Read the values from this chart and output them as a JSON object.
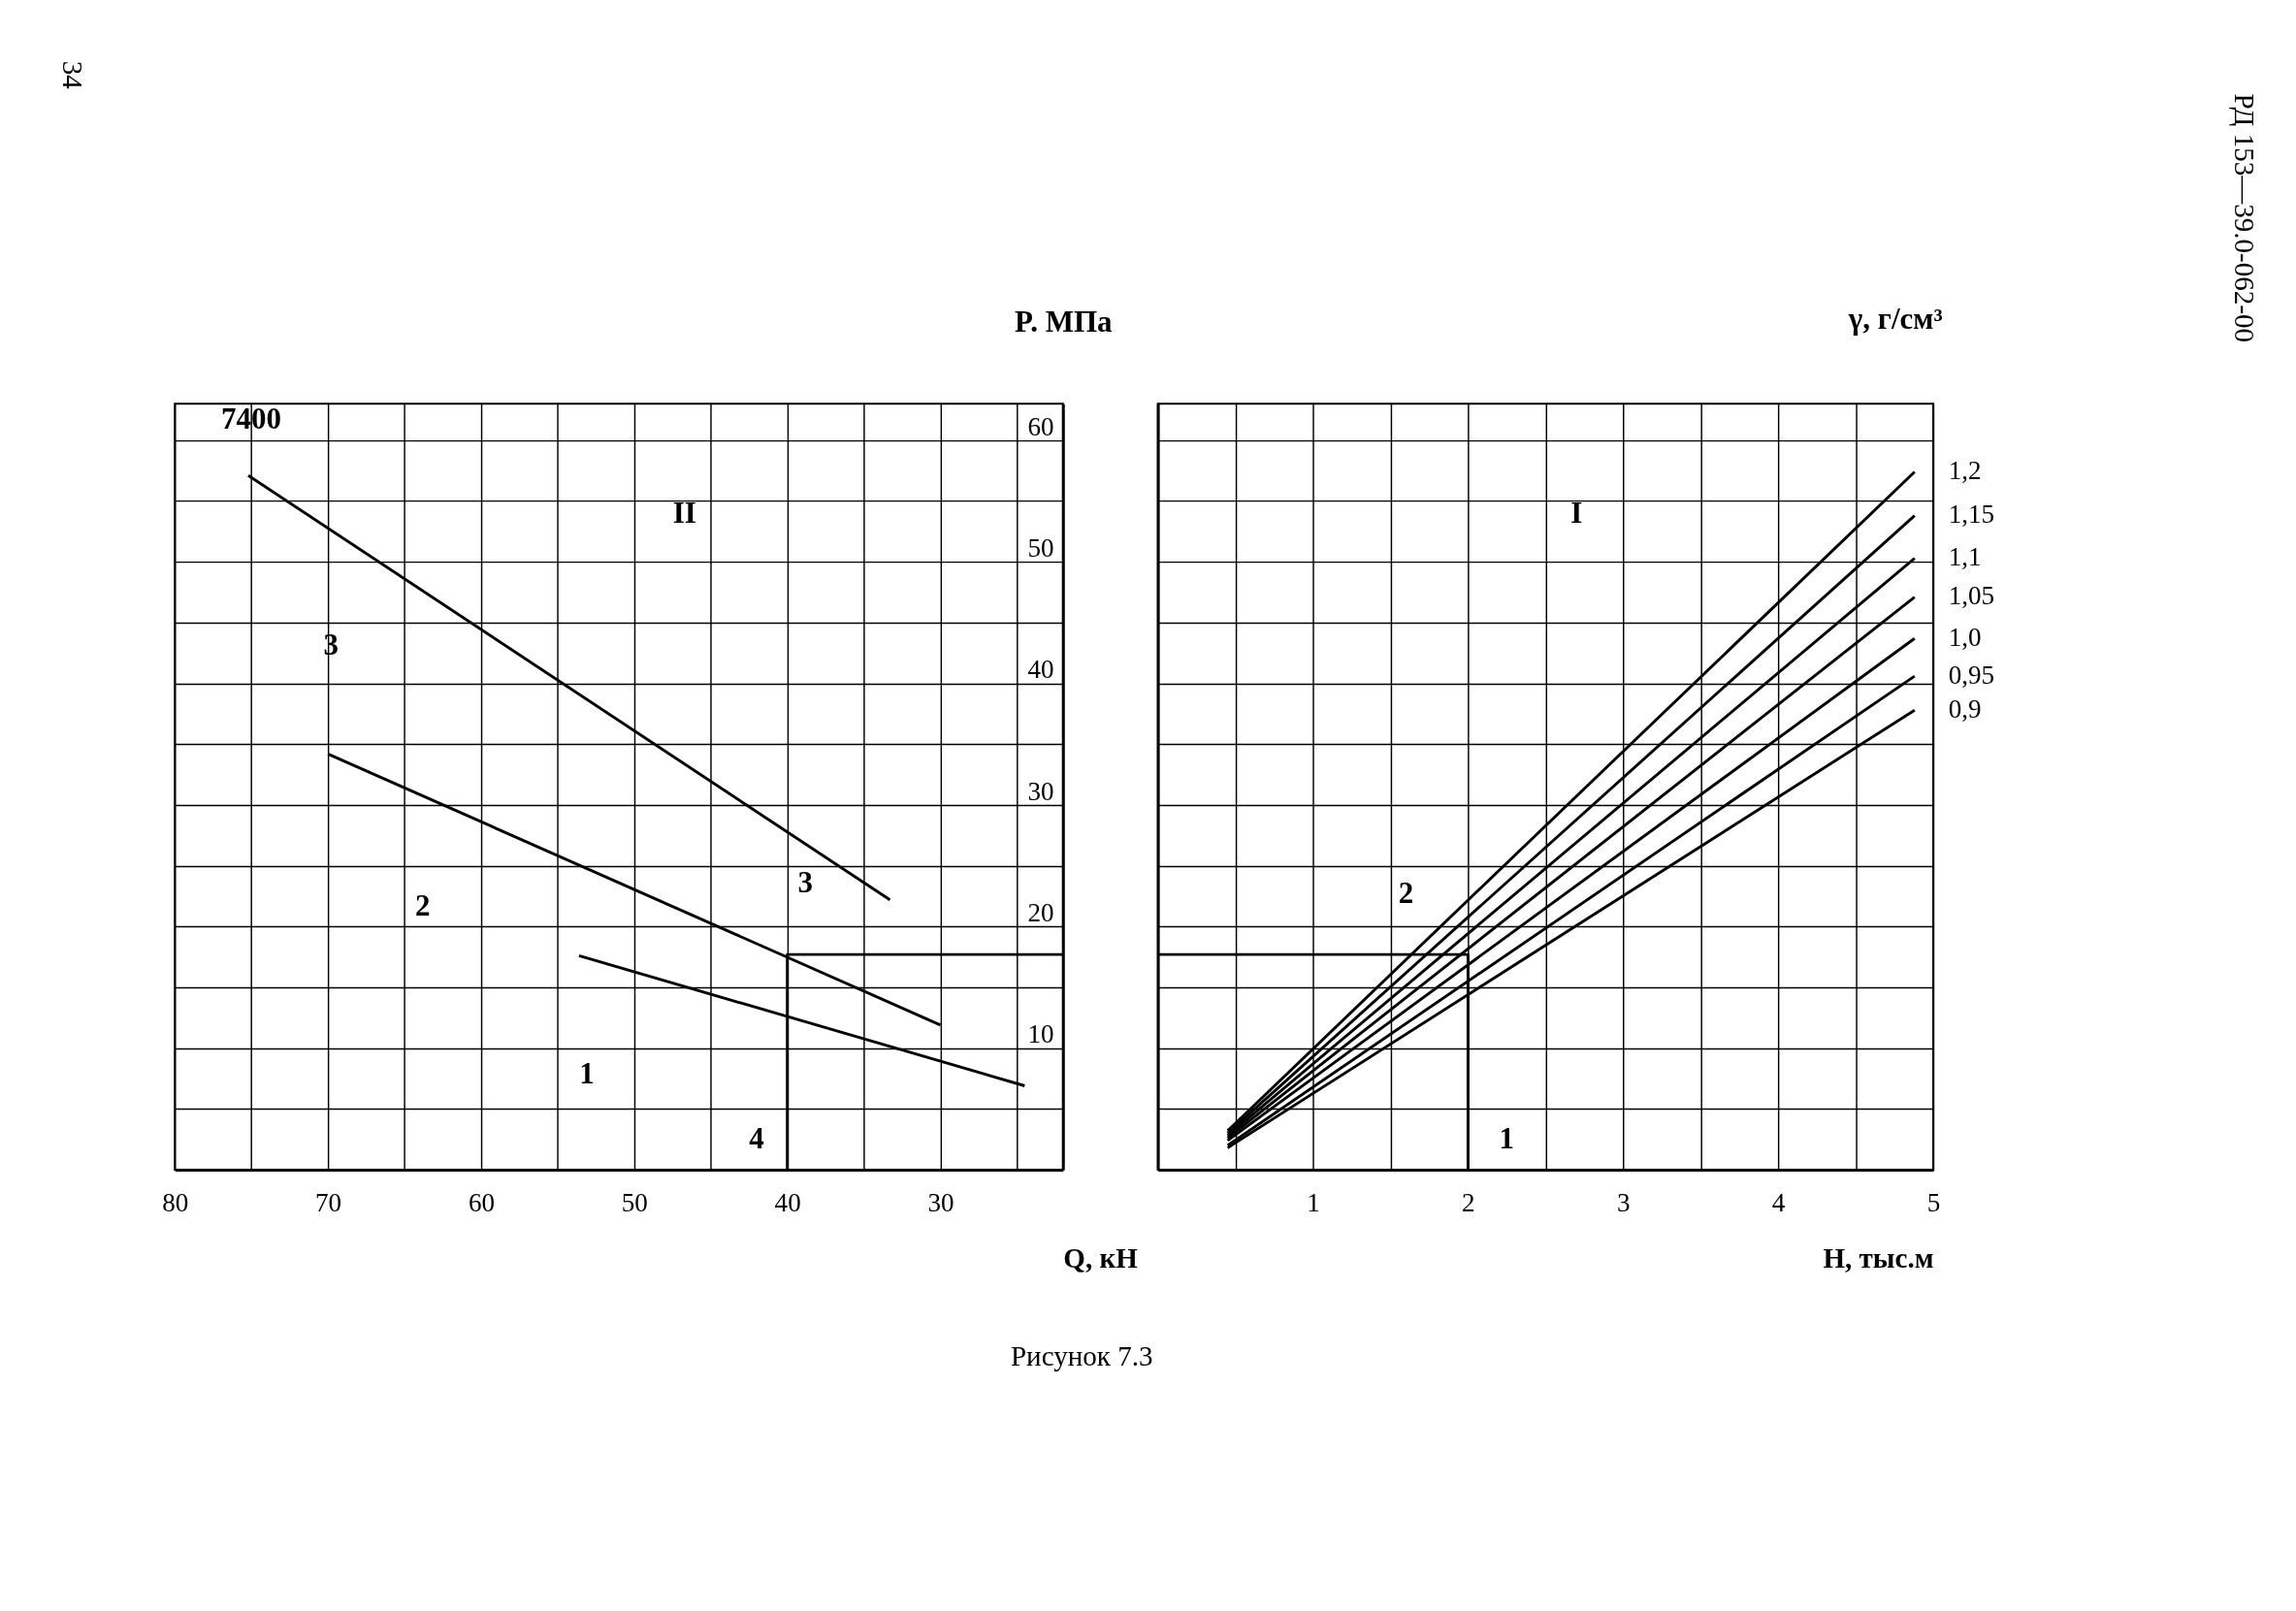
{
  "chart_data": [
    {
      "type": "line",
      "xlabel": "Q, кН",
      "ylabel": "P. МПа",
      "xlim": [
        80,
        22
      ],
      "ylim": [
        0,
        63
      ],
      "xticks": [
        80,
        {
          "value": 75,
          "label": null
        },
        70,
        {
          "value": 65,
          "label": null
        },
        60,
        {
          "value": 55,
          "label": null
        },
        50,
        {
          "value": 45,
          "label": null
        },
        40,
        {
          "value": 35,
          "label": null
        },
        30,
        {
          "value": 25,
          "label": null
        }
      ],
      "yticks": [
        {
          "value": 5,
          "label": null
        },
        10,
        {
          "value": 15,
          "label": null
        },
        20,
        {
          "value": 25,
          "label": null
        },
        30,
        {
          "value": 35,
          "label": null
        },
        40,
        {
          "value": 45,
          "label": null
        },
        50,
        {
          "value": 55,
          "label": null
        },
        60
      ],
      "grid": true,
      "tick_labels": "xy",
      "series": [
        {
          "color": "#000000",
          "x": [
            75.2,
            33.3
          ],
          "values": [
            57.1,
            22.2
          ]
        },
        {
          "color": "#000000",
          "x": [
            70,
            30
          ],
          "values": [
            34.2,
            11.9
          ]
        },
        {
          "color": "#000000",
          "x": [
            53.6,
            24.5
          ],
          "values": [
            17.6,
            6.9
          ]
        },
        {
          "color": "#000000",
          "x": [
            22,
            40,
            40
          ],
          "values": [
            17.7,
            17.7,
            0
          ]
        }
      ],
      "annotations": [
        "7400",
        "II",
        "3",
        "2",
        "1",
        "3",
        "4",
        "34",
        "Рисунок 7.3"
      ]
    },
    {
      "type": "line",
      "xlabel": "H, тыс.м",
      "legend_title": "γ, г/см³",
      "xlim": [
        0,
        5
      ],
      "ylim": [
        0,
        63
      ],
      "xticks": [
        {
          "value": 0.5,
          "label": null
        },
        1,
        {
          "value": 1.5,
          "label": null
        },
        2,
        {
          "value": 2.5,
          "label": null
        },
        3,
        {
          "value": 3.5,
          "label": null
        },
        4,
        {
          "value": 4.5,
          "label": null
        },
        5
      ],
      "yticks": [
        {
          "value": 5,
          "label": null
        },
        10,
        {
          "value": 15,
          "label": null
        },
        20,
        {
          "value": 25,
          "label": null
        },
        30,
        {
          "value": 35,
          "label": null
        },
        40,
        {
          "value": 45,
          "label": null
        },
        50,
        {
          "value": 55,
          "label": null
        },
        60
      ],
      "grid": true,
      "tick_labels": "x",
      "series": [
        {
          "name": "1,2",
          "color": "#000000",
          "x": [
            0.45,
            4.88
          ],
          "values": [
            3.2,
            57.4
          ]
        },
        {
          "name": "1,15",
          "color": "#000000",
          "x": [
            0.45,
            4.88
          ],
          "values": [
            3.0,
            53.8
          ]
        },
        {
          "name": "1,1",
          "color": "#000000",
          "x": [
            0.45,
            4.88
          ],
          "values": [
            2.8,
            50.3
          ]
        },
        {
          "name": "1,05",
          "color": "#000000",
          "x": [
            0.45,
            4.88
          ],
          "values": [
            2.6,
            47.1
          ]
        },
        {
          "name": "1,0",
          "color": "#000000",
          "x": [
            0.45,
            4.88
          ],
          "values": [
            2.4,
            43.7
          ]
        },
        {
          "name": "0,95",
          "color": "#000000",
          "x": [
            0.45,
            4.88
          ],
          "values": [
            2.0,
            40.6
          ]
        },
        {
          "name": "0,9",
          "color": "#000000",
          "x": [
            0.45,
            4.88
          ],
          "values": [
            1.8,
            37.8
          ]
        },
        {
          "color": "#000000",
          "x": [
            0,
            2,
            2
          ],
          "values": [
            17.7,
            17.7,
            0
          ]
        }
      ],
      "annotations": [
        "I",
        "2",
        "1",
        "РД 153—39.0-062-00"
      ]
    }
  ]
}
